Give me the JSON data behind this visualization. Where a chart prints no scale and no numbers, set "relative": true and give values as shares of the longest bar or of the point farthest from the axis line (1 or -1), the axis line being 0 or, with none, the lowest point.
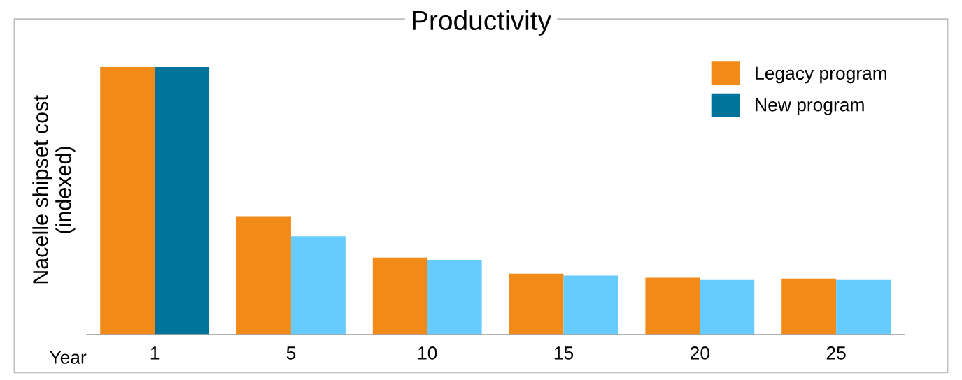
{
  "chart_data": {
    "type": "bar",
    "title": "Productivity",
    "ylabel": "Nacelle shipset cost\n(indexed)",
    "xlabel": "Year",
    "categories": [
      "1",
      "5",
      "10",
      "15",
      "20",
      "25"
    ],
    "relative": true,
    "series": [
      {
        "name": "Legacy program",
        "color": "#f28a18",
        "values": [
          1,
          0.442,
          0.287,
          0.227,
          0.212,
          0.209
        ]
      },
      {
        "name": "New program",
        "color": "#00739a",
        "colors": [
          "#00739a",
          "#66ccff",
          "#66ccff",
          "#66ccff",
          "#66ccff",
          "#66ccff"
        ],
        "values": [
          1,
          0.367,
          0.279,
          0.22,
          0.204,
          0.204
        ]
      }
    ],
    "legend": "top right",
    "grid": false
  }
}
